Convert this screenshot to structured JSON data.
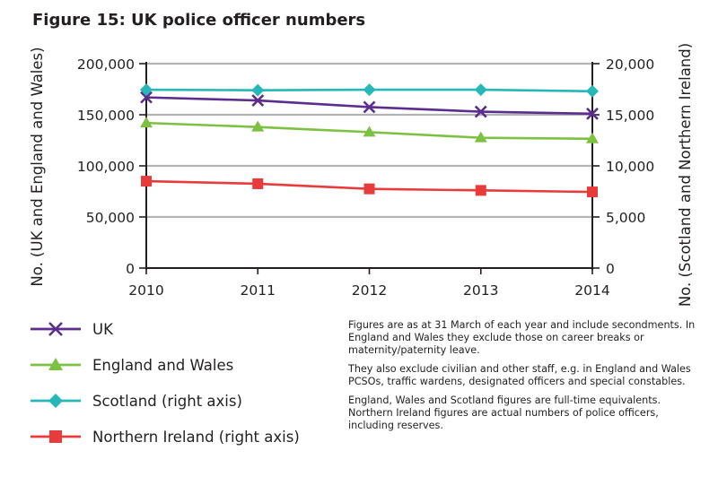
{
  "title": "Figure 15: UK police officer numbers",
  "chart_data": {
    "type": "line",
    "title": "Figure 15: UK police officer numbers",
    "x": [
      "2010",
      "2011",
      "2012",
      "2013",
      "2014"
    ],
    "ylabel_left": "No. (UK and England and Wales)",
    "ylabel_right": "No. (Scotland and Northern Ireland)",
    "ylim_left": [
      0,
      200000
    ],
    "ylim_right": [
      0,
      20000
    ],
    "yticks_left": [
      "0",
      "50,000",
      "100,000",
      "150,000",
      "200,000"
    ],
    "yticks_right": [
      "0",
      "5,000",
      "10,000",
      "15,000",
      "20,000"
    ],
    "grid": true,
    "legend_position": "bottom-left",
    "series": [
      {
        "name": "UK",
        "axis": "left",
        "color": "#5b2d8e",
        "marker": "x",
        "values": [
          167000,
          164000,
          157500,
          153000,
          151000
        ]
      },
      {
        "name": "England and Wales",
        "axis": "left",
        "color": "#7dc142",
        "marker": "triangle",
        "values": [
          142000,
          138000,
          133000,
          127500,
          126500
        ]
      },
      {
        "name": "Scotland (right axis)",
        "axis": "right",
        "color": "#26b7b9",
        "marker": "diamond",
        "values": [
          17450,
          17400,
          17450,
          17450,
          17300
        ]
      },
      {
        "name": "Northern Ireland (right axis)",
        "axis": "right",
        "color": "#e83b3b",
        "marker": "square",
        "values": [
          8500,
          8250,
          7750,
          7600,
          7450
        ]
      }
    ]
  },
  "notes": [
    "Figures are as at 31 March of each year and include secondments. In England and Wales they exclude those on career breaks or maternity/paternity leave.",
    "They also exclude civilian and other staff, e.g. in England and Wales PCSOs, traffic wardens, designated officers and special constables.",
    "England, Wales and Scotland figures are full-time equivalents. Northern Ireland figures are actual numbers of police officers, including reserves."
  ]
}
